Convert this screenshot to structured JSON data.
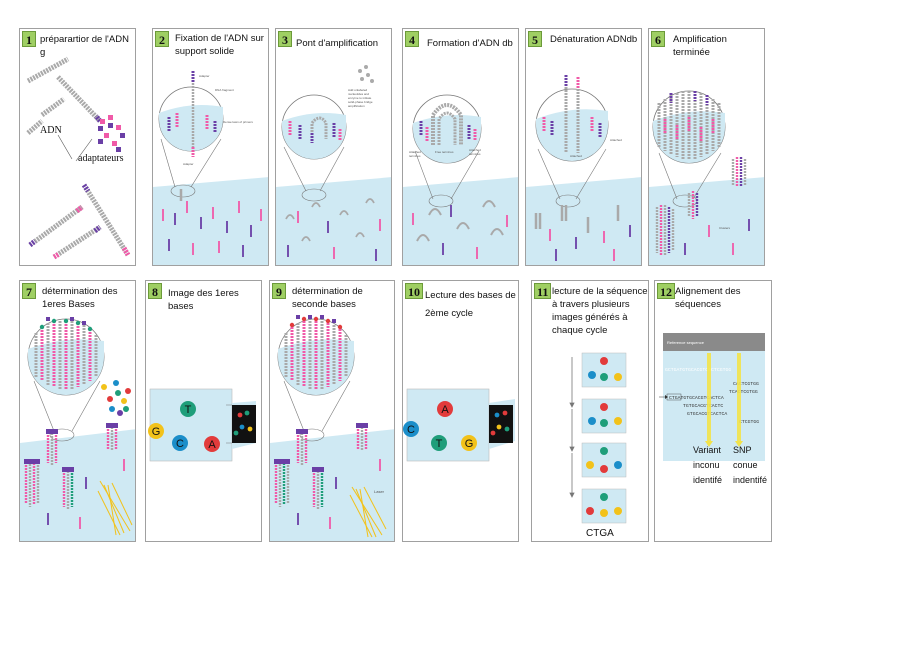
{
  "colors": {
    "purple": "#6a3fa6",
    "pink": "#f05aa8",
    "gray": "#a9a9a9",
    "glass": "#cfe9f3",
    "label": "#9fcf63",
    "red": "#e23b3b",
    "green": "#1f9e7a",
    "yellow": "#f2c21a",
    "blue": "#1b8ec9"
  },
  "panels": [
    {
      "num": "1",
      "title": "préparartior de l'ADN g"
    },
    {
      "num": "2",
      "title": "Fixation de l'ADN sur support solide"
    },
    {
      "num": "3",
      "title": "Pont d'amplification"
    },
    {
      "num": "4",
      "title": "Formation d'ADN db"
    },
    {
      "num": "5",
      "title": "Dénaturation ADNdb"
    },
    {
      "num": "6",
      "title": "Amplification terminée"
    },
    {
      "num": "7",
      "title": "détermination des 1eres Bases"
    },
    {
      "num": "8",
      "title": "Image des 1eres bases"
    },
    {
      "num": "9",
      "title": "détermination de seconde bases"
    },
    {
      "num": "10",
      "title": "Lecture des bases de 2ème cycle"
    },
    {
      "num": "11",
      "title": "lecture de la séquence à travers plusieurs images générés à chaque cycle"
    },
    {
      "num": "12",
      "title": "Alignement des séquences"
    }
  ],
  "p1": {
    "adn": "ADN",
    "adaptateurs": "adaptateurs"
  },
  "p2": {
    "labels": [
      "Adapter",
      "DNA fragment",
      "Dense lawn of primers",
      "Adapter"
    ]
  },
  "p3": {
    "labels": [
      "Add unlabeled",
      "nucleotides and",
      "enzyme to initiate",
      "solid-phase bridge",
      "amplification"
    ]
  },
  "p4": {
    "labels": [
      "Attached",
      "terminus",
      "Free terminus",
      "Attached",
      "terminus"
    ]
  },
  "p5": {
    "labels": [
      "Attached",
      "Attached"
    ]
  },
  "p6": {
    "labels": [
      "Clusters"
    ]
  },
  "p8": {
    "bases": [
      {
        "b": "T",
        "c": "green"
      },
      {
        "b": "G",
        "c": "yellow"
      },
      {
        "b": "C",
        "c": "blue"
      },
      {
        "b": "A",
        "c": "red"
      }
    ]
  },
  "p9": {
    "laser": "Laser"
  },
  "p10": {
    "bases": [
      {
        "b": "A",
        "c": "red"
      },
      {
        "b": "C",
        "c": "blue"
      },
      {
        "b": "T",
        "c": "green"
      },
      {
        "b": "G",
        "c": "yellow"
      }
    ]
  },
  "p11": {
    "result": "CTGA"
  },
  "p12": {
    "header": "Reference sequence",
    "ref": "GCTGATGTGCACGTCACTCGTGG",
    "reads": [
      "CACTCGTGG",
      "TCACTCGTGG",
      "CTGATGTGCACGTCACTCA",
      "TGTGCACGTCACTC",
      "GTGCACGTCACTCA",
      "CTCGTGG"
    ],
    "variant": "Variant inconu identifé",
    "snp": "SNP conue indentifé"
  }
}
